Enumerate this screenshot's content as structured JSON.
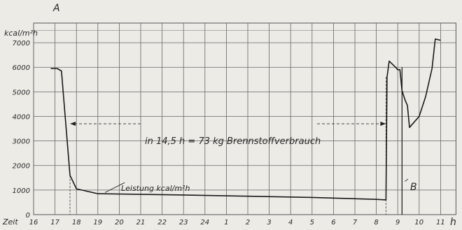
{
  "chart_data": {
    "type": "line",
    "corner_label": "A",
    "ylabel": "kcal/m²h",
    "xlabel": "h",
    "x_axis_prefix": "Zeit",
    "x_tick_labels": [
      "16",
      "17",
      "18",
      "19",
      "20",
      "21",
      "22",
      "23",
      "24",
      "1",
      "2",
      "3",
      "4",
      "5",
      "6",
      "7",
      "8",
      "9",
      "10",
      "11"
    ],
    "y_tick_labels": [
      "0",
      "1000",
      "2000",
      "3000",
      "4000",
      "5000",
      "6000",
      "7000"
    ],
    "ylim": [
      0,
      7800
    ],
    "grid": true,
    "series": [
      {
        "name": "Leistung kcal/m²h",
        "x": [
          16.8,
          17.1,
          17.3,
          17.7,
          18.0,
          18.5,
          19.0,
          23.0,
          5.0,
          8.0,
          8.45,
          8.5,
          8.6,
          8.9,
          9.0,
          9.1,
          9.2,
          9.35,
          9.45,
          9.55,
          9.75,
          10.0,
          10.3,
          10.6,
          10.75,
          11.0
        ],
        "y": [
          5950,
          5950,
          5850,
          1600,
          1050,
          950,
          850,
          800,
          700,
          620,
          600,
          5600,
          6250,
          6000,
          5900,
          5900,
          5050,
          4650,
          4450,
          3550,
          3750,
          4000,
          4800,
          5950,
          7150,
          7100
        ]
      }
    ],
    "annotations": {
      "consumption": "in 14,5 h = 73 kg Brennstoffverbrauch",
      "series_label": "Leistung kcal/m²h",
      "point_b": "B",
      "consumption_span": [
        17.7,
        8.45
      ],
      "marker_b_x": 9.2
    }
  }
}
